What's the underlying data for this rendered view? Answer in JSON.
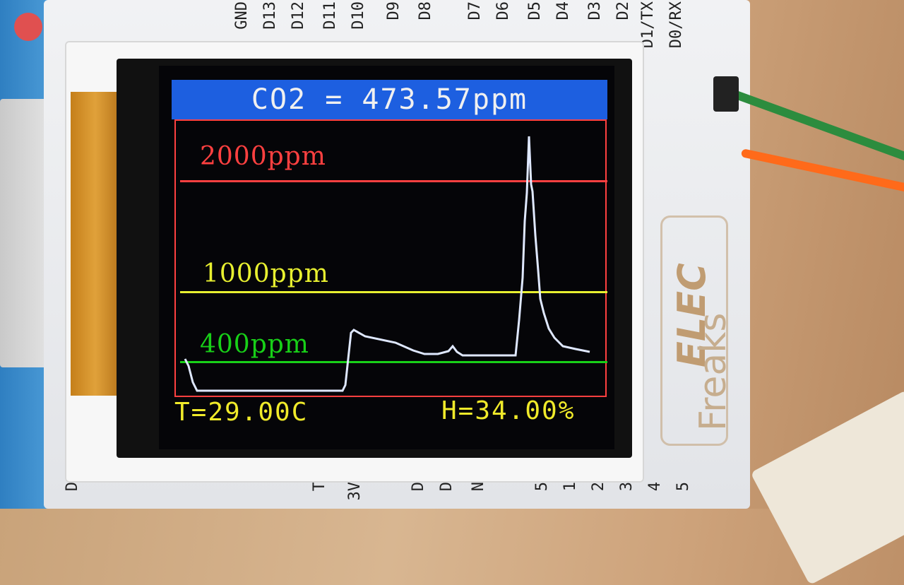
{
  "header_pins": [
    "GND",
    "D13",
    "D12",
    "D11",
    "D10",
    "D9",
    "D8",
    "D7",
    "D6",
    "D5",
    "D4",
    "D3",
    "D2",
    "D1/TX",
    "D0/RX"
  ],
  "bottom_pins": [
    "D",
    "T",
    "3V",
    "D",
    "D",
    "N",
    "5",
    "1",
    "2",
    "3",
    "4",
    "5"
  ],
  "display": {
    "title": "CO2 = 473.57ppm",
    "levels": [
      {
        "label": "2000ppm",
        "color": "#ff4040",
        "value": 2000
      },
      {
        "label": "1000ppm",
        "color": "#e8f030",
        "value": 1000
      },
      {
        "label": "400ppm",
        "color": "#18d018",
        "value": 400
      }
    ],
    "temperature": "T=29.00C",
    "humidity": "H=34.00%"
  },
  "brand_logo": {
    "line1": "ELEC",
    "line2": "Freaks"
  },
  "colors": {
    "screen_bg": "#050508",
    "title_bar": "#1d5fe0",
    "plot_border": "#ff4040",
    "trace": "#dfe8ff",
    "status_text": "#f0ea2a"
  }
}
